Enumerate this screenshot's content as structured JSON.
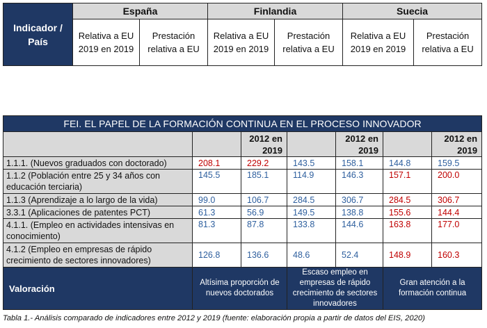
{
  "top_table": {
    "indicator_label": "Indicador / País",
    "countries": [
      "España",
      "Finlandia",
      "Suecia"
    ],
    "subheaders": [
      "Relativa a EU 2019 en 2019",
      "Prestación relativa a EU"
    ]
  },
  "main_table": {
    "title": "FEI. EL PAPEL DE LA FORMACIÓN CONTINUA EN EL PROCESO INNOVADOR",
    "year_label": "2012 en 2019",
    "rows": [
      {
        "label": "1.1.1. (Nuevos graduados con doctorado)",
        "values": [
          "208.1",
          "229.2",
          "143.5",
          "158.1",
          "144.8",
          "159.5"
        ]
      },
      {
        "label": "1.1.2 (Población entre 25 y 34 años con educación terciaria)",
        "values": [
          "145.5",
          "185.1",
          "114.9",
          "146.3",
          "157.1",
          "200.0"
        ]
      },
      {
        "label": "1.1.3 (Aprendizaje a lo largo de la vida)",
        "values": [
          "99.0",
          "106.7",
          "284.5",
          "306.7",
          "284.5",
          "306.7"
        ]
      },
      {
        "label": "3.3.1 (Aplicaciones de patentes PCT)",
        "values": [
          "61.3",
          "56.9",
          "149.5",
          "138.8",
          "155.6",
          "144.4"
        ]
      },
      {
        "label": "4.1.1. (Empleo en actividades intensivas en conocimiento)",
        "values": [
          "81.3",
          "87.8",
          "133.8",
          "144.6",
          "163.8",
          "177.0"
        ]
      },
      {
        "label": "4.1.2 (Empleo en empresas de rápido crecimiento de sectores innovadores)",
        "values": [
          "126.8",
          "136.6",
          "48.6",
          "52.4",
          "148.9",
          "160.3"
        ]
      }
    ],
    "value_colors": [
      [
        "red",
        "red",
        "blue",
        "blue",
        "blue",
        "blue"
      ],
      [
        "blue",
        "blue",
        "blue",
        "blue",
        "red",
        "red"
      ],
      [
        "blue",
        "blue",
        "blue",
        "blue",
        "red",
        "red"
      ],
      [
        "blue",
        "blue",
        "blue",
        "blue",
        "red",
        "red"
      ],
      [
        "blue",
        "blue",
        "blue",
        "blue",
        "red",
        "red"
      ],
      [
        "blue",
        "blue",
        "blue",
        "blue",
        "red",
        "red"
      ]
    ],
    "valoracion_label": "Valoración",
    "valoraciones": [
      "Altísima proporción de nuevos doctorados",
      "Escaso empleo en empresas de rápido crecimiento de sectores innovadores",
      "Gran atención a la formación continua"
    ]
  },
  "caption": "Tabla 1.- Análisis comparado de indicadores entre 2012 y 2019 (fuente: elaboración propia a partir de datos del EIS, 2020)",
  "colors": {
    "navy": "#1f3864",
    "blue": "#2e5f9e",
    "red": "#c00000",
    "grey": "#d9d9d9"
  }
}
